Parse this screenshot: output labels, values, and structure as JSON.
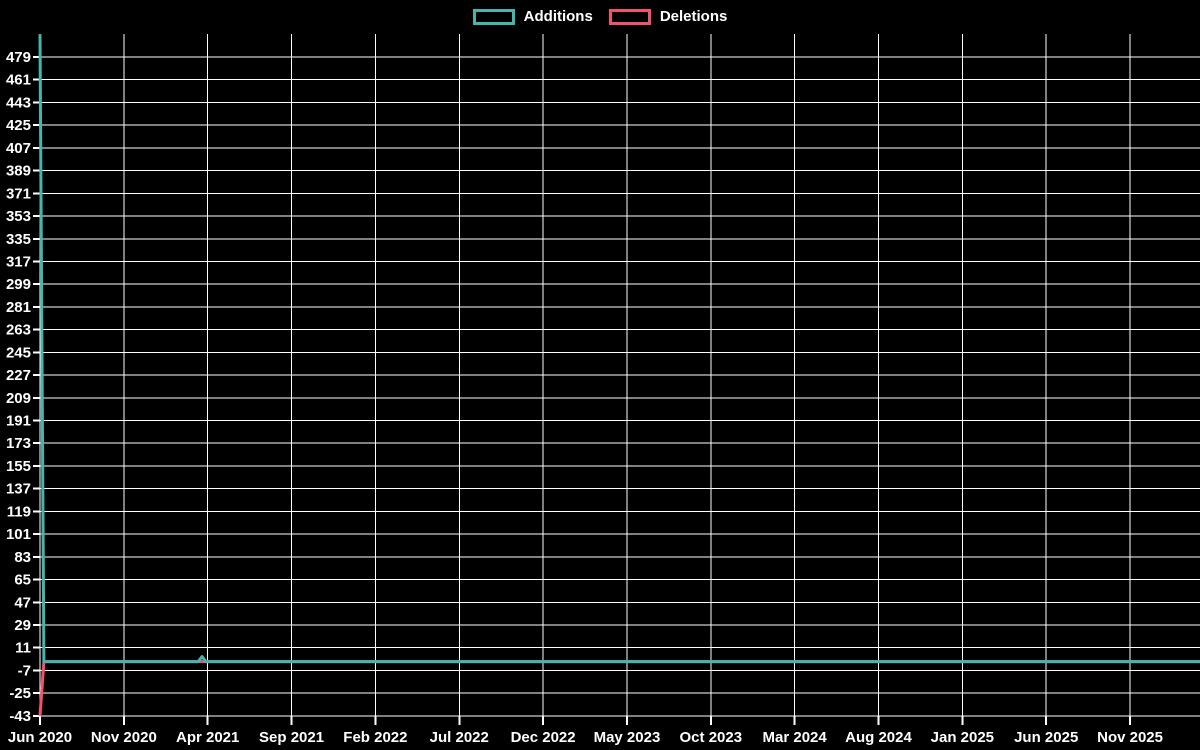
{
  "legend": {
    "items": [
      {
        "label": "Additions",
        "color": "#46b5ad"
      },
      {
        "label": "Deletions",
        "color": "#f1536f"
      }
    ]
  },
  "chart_data": {
    "type": "line",
    "title": "",
    "background": "#000000",
    "grid": true,
    "grid_color": "#ffffff",
    "text_color": "#ffffff",
    "legend_position": "top-center",
    "x_axis": {
      "unit": "weeks since first commit (Jun 2020), ticks every 5 months",
      "tick_labels": [
        "Jun 2020",
        "Nov 2020",
        "Apr 2021",
        "Sep 2021",
        "Feb 2022",
        "Jul 2022",
        "Dec 2022",
        "May 2023",
        "Oct 2023",
        "Mar 2024",
        "Aug 2024",
        "Jan 2025",
        "Jun 2025",
        "Nov 2025"
      ]
    },
    "y_axis": {
      "min": -43,
      "max": 497,
      "tick_step": 18,
      "tick_labels": [
        479,
        461,
        443,
        425,
        407,
        389,
        371,
        353,
        335,
        317,
        299,
        281,
        263,
        245,
        227,
        209,
        191,
        173,
        155,
        137,
        119,
        101,
        83,
        65,
        47,
        29,
        11,
        -7,
        -25,
        -43
      ]
    },
    "series": [
      {
        "name": "Additions",
        "color": "#46b5ad",
        "points": [
          [
            0,
            497
          ],
          [
            1,
            0
          ],
          [
            41,
            0
          ],
          [
            42,
            4
          ],
          [
            43,
            0
          ],
          [
            301,
            0
          ]
        ]
      },
      {
        "name": "Deletions",
        "color": "#f1536f",
        "points": [
          [
            0,
            -43
          ],
          [
            1,
            0
          ],
          [
            301,
            0
          ]
        ]
      }
    ]
  }
}
